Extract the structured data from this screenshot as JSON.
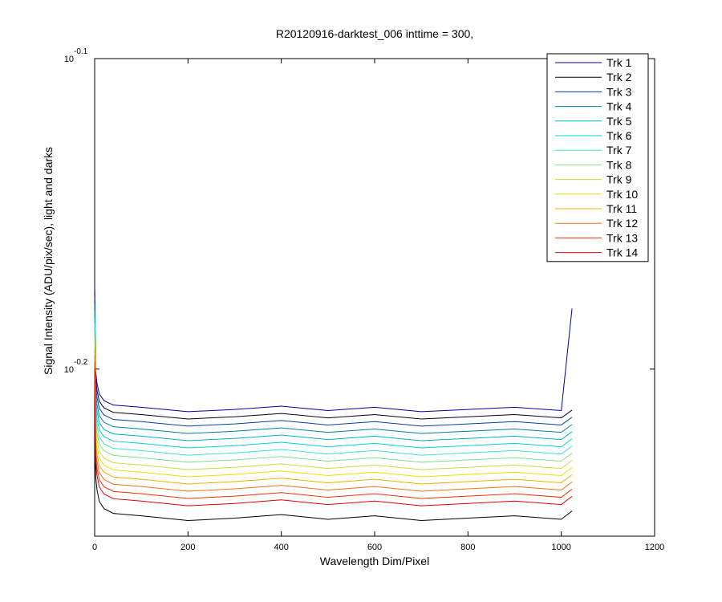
{
  "chart_data": {
    "type": "line",
    "title": "R20120916-darktest_006 inttime = 300,",
    "x_label": "Wavelength Dim/Pixel",
    "y_label": "Signal Intensity (ADU/pix/sec), light and darks",
    "y_scale": "log",
    "x": [
      0,
      2,
      5,
      10,
      20,
      40,
      100,
      200,
      300,
      400,
      500,
      600,
      700,
      800,
      900,
      1000,
      1023
    ],
    "xlim": [
      0,
      1200
    ],
    "xticks": [
      0,
      200,
      400,
      600,
      800,
      1000,
      1200
    ],
    "ylim": [
      0.5575,
      0.7943
    ],
    "yticks": [
      {
        "value": 0.7943,
        "label": "10",
        "exponent": "-0.1"
      },
      {
        "value": 0.631,
        "label": "10",
        "exponent": "-0.2"
      }
    ],
    "legend_position": "top-right",
    "series": [
      {
        "color": "#000000",
        "values": [
          0.625,
          0.583,
          0.577,
          0.572,
          0.569,
          0.567,
          0.566,
          0.564,
          0.565,
          0.5665,
          0.5645,
          0.566,
          0.564,
          0.565,
          0.566,
          0.5645,
          0.568
        ]
      },
      {
        "name": "Trk 1",
        "color": "#00009f",
        "values": [
          0.6724,
          0.6304,
          0.6244,
          0.6194,
          0.6164,
          0.6144,
          0.6134,
          0.6114,
          0.6124,
          0.6139,
          0.6119,
          0.6134,
          0.6114,
          0.6124,
          0.6134,
          0.6119,
          0.66
        ]
      },
      {
        "name": "Trk 2",
        "color": "#000020",
        "values": [
          0.6691,
          0.6271,
          0.6211,
          0.6161,
          0.6131,
          0.6111,
          0.6101,
          0.6081,
          0.6091,
          0.6106,
          0.6086,
          0.6101,
          0.6081,
          0.6091,
          0.6101,
          0.6086,
          0.6121
        ]
      },
      {
        "name": "Trk 3",
        "color": "#0040a0",
        "values": [
          0.6659,
          0.6239,
          0.6179,
          0.6129,
          0.6099,
          0.6079,
          0.6069,
          0.6049,
          0.6059,
          0.6074,
          0.6054,
          0.6069,
          0.6049,
          0.6059,
          0.6069,
          0.6054,
          0.6089
        ]
      },
      {
        "name": "Trk 4",
        "color": "#0080a0",
        "values": [
          0.6626,
          0.6206,
          0.6146,
          0.6096,
          0.6066,
          0.6046,
          0.6036,
          0.6016,
          0.6026,
          0.6041,
          0.6021,
          0.6036,
          0.6016,
          0.6026,
          0.6036,
          0.6021,
          0.6056
        ]
      },
      {
        "name": "Trk 5",
        "color": "#00b0c8",
        "values": [
          0.6594,
          0.6174,
          0.6114,
          0.6064,
          0.6034,
          0.6014,
          0.6004,
          0.5984,
          0.5994,
          0.6009,
          0.5989,
          0.6004,
          0.5984,
          0.5994,
          0.6004,
          0.5989,
          0.6024
        ]
      },
      {
        "name": "Trk 6",
        "color": "#00d0d8",
        "values": [
          0.6562,
          0.6142,
          0.6082,
          0.6032,
          0.6002,
          0.5982,
          0.5972,
          0.5952,
          0.5962,
          0.5977,
          0.5957,
          0.5972,
          0.5952,
          0.5962,
          0.5972,
          0.5957,
          0.5992
        ]
      },
      {
        "name": "Trk 7",
        "color": "#40e0d0",
        "values": [
          0.653,
          0.611,
          0.605,
          0.6,
          0.597,
          0.595,
          0.594,
          0.592,
          0.593,
          0.5945,
          0.5925,
          0.594,
          0.592,
          0.593,
          0.594,
          0.5925,
          0.596
        ]
      },
      {
        "name": "Trk 8",
        "color": "#80e080",
        "values": [
          0.6499,
          0.6079,
          0.6019,
          0.5969,
          0.5939,
          0.5919,
          0.5909,
          0.5889,
          0.5899,
          0.5914,
          0.5894,
          0.5909,
          0.5889,
          0.5899,
          0.5909,
          0.5894,
          0.5929
        ]
      },
      {
        "name": "Trk 9",
        "color": "#c0e040",
        "values": [
          0.6467,
          0.6047,
          0.5987,
          0.5937,
          0.5907,
          0.5887,
          0.5877,
          0.5857,
          0.5867,
          0.5882,
          0.5862,
          0.5877,
          0.5857,
          0.5867,
          0.5877,
          0.5862,
          0.5897
        ]
      },
      {
        "name": "Trk 10",
        "color": "#e8e000",
        "values": [
          0.6436,
          0.6016,
          0.5956,
          0.5906,
          0.5876,
          0.5856,
          0.5846,
          0.5826,
          0.5836,
          0.5851,
          0.5831,
          0.5846,
          0.5826,
          0.5836,
          0.5846,
          0.5831,
          0.5866
        ]
      },
      {
        "name": "Trk 11",
        "color": "#f0b000",
        "values": [
          0.6405,
          0.5985,
          0.5925,
          0.5875,
          0.5845,
          0.5825,
          0.5815,
          0.5795,
          0.5805,
          0.582,
          0.58,
          0.5815,
          0.5795,
          0.5805,
          0.5815,
          0.58,
          0.5835
        ]
      },
      {
        "name": "Trk 12",
        "color": "#f07020",
        "values": [
          0.6374,
          0.5954,
          0.5894,
          0.5844,
          0.5814,
          0.5794,
          0.5784,
          0.5764,
          0.5774,
          0.5789,
          0.5769,
          0.5784,
          0.5764,
          0.5774,
          0.5784,
          0.5769,
          0.5804
        ]
      },
      {
        "name": "Trk 13",
        "color": "#f03000",
        "values": [
          0.6343,
          0.5923,
          0.5863,
          0.5813,
          0.5783,
          0.5763,
          0.5753,
          0.5733,
          0.5743,
          0.5758,
          0.5738,
          0.5753,
          0.5733,
          0.5743,
          0.5753,
          0.5738,
          0.5773
        ]
      },
      {
        "name": "Trk 14",
        "color": "#e00000",
        "values": [
          0.6312,
          0.5892,
          0.5832,
          0.5782,
          0.5752,
          0.5732,
          0.5722,
          0.5702,
          0.5712,
          0.5727,
          0.5707,
          0.5722,
          0.5702,
          0.5712,
          0.5722,
          0.5707,
          0.5742
        ]
      }
    ]
  }
}
